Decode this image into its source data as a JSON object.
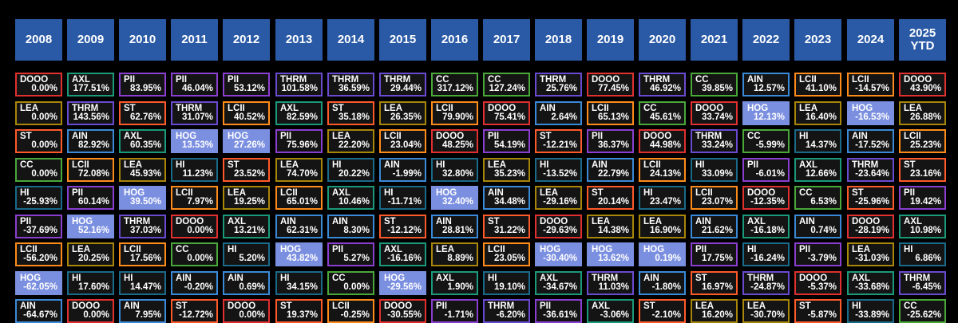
{
  "chart_data": {
    "type": "table",
    "title": "",
    "years": [
      "2008",
      "2009",
      "2010",
      "2011",
      "2012",
      "2013",
      "2014",
      "2015",
      "2016",
      "2017",
      "2018",
      "2019",
      "2020",
      "2021",
      "2022",
      "2023",
      "2024",
      "2025\nYTD"
    ],
    "ticker_colors": {
      "DOOO": "#e03030",
      "AXL": "#1a9a7a",
      "PII": "#8a3fd0",
      "THRM": "#6a4ad0",
      "CC": "#4aa83a",
      "AIN": "#3a8ad8",
      "LCII": "#ff8c1a",
      "LEA": "#a8860a",
      "ST": "#ff5a2a",
      "HI": "#1a6a8a",
      "HOG": "#7b8fe0"
    },
    "columns": [
      [
        [
          "DOOO",
          "0.00%"
        ],
        [
          "LEA",
          "0.00%"
        ],
        [
          "ST",
          "0.00%"
        ],
        [
          "CC",
          "0.00%"
        ],
        [
          "HI",
          "-25.93%"
        ],
        [
          "PII",
          "-37.69%"
        ],
        [
          "LCII",
          "-56.20%"
        ],
        [
          "HOG",
          "-62.05%"
        ],
        [
          "AIN",
          "-64.67%"
        ]
      ],
      [
        [
          "AXL",
          "177.51%"
        ],
        [
          "THRM",
          "143.56%"
        ],
        [
          "AIN",
          "82.92%"
        ],
        [
          "LCII",
          "72.08%"
        ],
        [
          "PII",
          "60.14%"
        ],
        [
          "HOG",
          "52.16%"
        ],
        [
          "LEA",
          "20.25%"
        ],
        [
          "HI",
          "17.60%"
        ],
        [
          "DOOO",
          "0.00%"
        ]
      ],
      [
        [
          "PII",
          "83.95%"
        ],
        [
          "ST",
          "62.76%"
        ],
        [
          "AXL",
          "60.35%"
        ],
        [
          "LEA",
          "45.93%"
        ],
        [
          "HOG",
          "39.50%"
        ],
        [
          "THRM",
          "37.03%"
        ],
        [
          "LCII",
          "17.56%"
        ],
        [
          "HI",
          "14.47%"
        ],
        [
          "AIN",
          "7.95%"
        ]
      ],
      [
        [
          "PII",
          "46.04%"
        ],
        [
          "THRM",
          "31.07%"
        ],
        [
          "HOG",
          "13.53%"
        ],
        [
          "HI",
          "11.23%"
        ],
        [
          "LCII",
          "7.97%"
        ],
        [
          "DOOO",
          "0.00%"
        ],
        [
          "CC",
          "0.00%"
        ],
        [
          "AIN",
          "-0.20%"
        ],
        [
          "ST",
          "-12.72%"
        ]
      ],
      [
        [
          "PII",
          "53.12%"
        ],
        [
          "LCII",
          "40.52%"
        ],
        [
          "HOG",
          "27.26%"
        ],
        [
          "ST",
          "23.52%"
        ],
        [
          "LEA",
          "19.25%"
        ],
        [
          "AXL",
          "13.21%"
        ],
        [
          "HI",
          "5.20%"
        ],
        [
          "AIN",
          "0.69%"
        ],
        [
          "DOOO",
          "0.00%"
        ]
      ],
      [
        [
          "THRM",
          "101.58%"
        ],
        [
          "AXL",
          "82.59%"
        ],
        [
          "PII",
          "75.96%"
        ],
        [
          "LEA",
          "74.70%"
        ],
        [
          "LCII",
          "65.01%"
        ],
        [
          "AIN",
          "62.31%"
        ],
        [
          "HOG",
          "43.82%"
        ],
        [
          "HI",
          "34.15%"
        ],
        [
          "ST",
          "19.37%"
        ]
      ],
      [
        [
          "THRM",
          "36.59%"
        ],
        [
          "ST",
          "35.18%"
        ],
        [
          "LEA",
          "22.20%"
        ],
        [
          "HI",
          "20.22%"
        ],
        [
          "AXL",
          "10.46%"
        ],
        [
          "AIN",
          "8.30%"
        ],
        [
          "PII",
          "5.27%"
        ],
        [
          "CC",
          "0.00%"
        ],
        [
          "LCII",
          "-0.25%"
        ]
      ],
      [
        [
          "THRM",
          "29.44%"
        ],
        [
          "LEA",
          "26.35%"
        ],
        [
          "LCII",
          "23.04%"
        ],
        [
          "AIN",
          "-1.99%"
        ],
        [
          "HI",
          "-11.71%"
        ],
        [
          "ST",
          "-12.12%"
        ],
        [
          "AXL",
          "-16.16%"
        ],
        [
          "HOG",
          "-29.56%"
        ],
        [
          "DOOO",
          "-30.55%"
        ]
      ],
      [
        [
          "CC",
          "317.12%"
        ],
        [
          "LCII",
          "79.90%"
        ],
        [
          "DOOO",
          "48.25%"
        ],
        [
          "HI",
          "32.80%"
        ],
        [
          "HOG",
          "32.40%"
        ],
        [
          "AIN",
          "28.81%"
        ],
        [
          "LEA",
          "8.89%"
        ],
        [
          "AXL",
          "1.90%"
        ],
        [
          "PII",
          "-1.71%"
        ]
      ],
      [
        [
          "CC",
          "127.24%"
        ],
        [
          "DOOO",
          "75.41%"
        ],
        [
          "PII",
          "54.19%"
        ],
        [
          "LEA",
          "35.23%"
        ],
        [
          "AIN",
          "34.48%"
        ],
        [
          "ST",
          "31.22%"
        ],
        [
          "LCII",
          "23.05%"
        ],
        [
          "HI",
          "19.10%"
        ],
        [
          "THRM",
          "-6.20%"
        ]
      ],
      [
        [
          "THRM",
          "25.76%"
        ],
        [
          "AIN",
          "2.64%"
        ],
        [
          "ST",
          "-12.21%"
        ],
        [
          "HI",
          "-13.52%"
        ],
        [
          "LEA",
          "-29.16%"
        ],
        [
          "DOOO",
          "-29.63%"
        ],
        [
          "HOG",
          "-30.40%"
        ],
        [
          "AXL",
          "-34.67%"
        ],
        [
          "PII",
          "-36.61%"
        ]
      ],
      [
        [
          "DOOO",
          "77.45%"
        ],
        [
          "LCII",
          "65.13%"
        ],
        [
          "PII",
          "36.37%"
        ],
        [
          "AIN",
          "22.79%"
        ],
        [
          "ST",
          "20.14%"
        ],
        [
          "LEA",
          "14.38%"
        ],
        [
          "HOG",
          "13.62%"
        ],
        [
          "THRM",
          "11.03%"
        ],
        [
          "AXL",
          "-3.06%"
        ]
      ],
      [
        [
          "THRM",
          "46.92%"
        ],
        [
          "CC",
          "45.61%"
        ],
        [
          "DOOO",
          "44.98%"
        ],
        [
          "LCII",
          "24.13%"
        ],
        [
          "HI",
          "23.47%"
        ],
        [
          "LEA",
          "16.90%"
        ],
        [
          "HOG",
          "0.19%"
        ],
        [
          "AIN",
          "-1.80%"
        ],
        [
          "ST",
          "-2.10%"
        ]
      ],
      [
        [
          "CC",
          "39.85%"
        ],
        [
          "DOOO",
          "33.74%"
        ],
        [
          "THRM",
          "33.24%"
        ],
        [
          "HI",
          "33.09%"
        ],
        [
          "LCII",
          "23.07%"
        ],
        [
          "AIN",
          "21.62%"
        ],
        [
          "PII",
          "17.75%"
        ],
        [
          "ST",
          "16.97%"
        ],
        [
          "LEA",
          "16.20%"
        ]
      ],
      [
        [
          "AIN",
          "12.57%"
        ],
        [
          "HOG",
          "12.13%"
        ],
        [
          "CC",
          "-5.99%"
        ],
        [
          "PII",
          "-6.01%"
        ],
        [
          "DOOO",
          "-12.35%"
        ],
        [
          "AXL",
          "-16.18%"
        ],
        [
          "HI",
          "-16.24%"
        ],
        [
          "THRM",
          "-24.87%"
        ],
        [
          "LEA",
          "-30.70%"
        ]
      ],
      [
        [
          "LCII",
          "41.10%"
        ],
        [
          "LEA",
          "16.40%"
        ],
        [
          "HI",
          "14.37%"
        ],
        [
          "AXL",
          "12.66%"
        ],
        [
          "CC",
          "6.53%"
        ],
        [
          "AIN",
          "0.74%"
        ],
        [
          "PII",
          "-3.79%"
        ],
        [
          "DOOO",
          "-5.37%"
        ],
        [
          "ST",
          "-5.87%"
        ]
      ],
      [
        [
          "LCII",
          "-14.57%"
        ],
        [
          "HOG",
          "-16.53%"
        ],
        [
          "AIN",
          "-17.52%"
        ],
        [
          "THRM",
          "-23.64%"
        ],
        [
          "ST",
          "-25.96%"
        ],
        [
          "DOOO",
          "-28.19%"
        ],
        [
          "LEA",
          "-31.03%"
        ],
        [
          "AXL",
          "-33.68%"
        ],
        [
          "HI",
          "-33.89%"
        ]
      ],
      [
        [
          "DOOO",
          "43.90%"
        ],
        [
          "LEA",
          "26.88%"
        ],
        [
          "LCII",
          "25.23%"
        ],
        [
          "ST",
          "23.16%"
        ],
        [
          "PII",
          "19.42%"
        ],
        [
          "AXL",
          "10.98%"
        ],
        [
          "HI",
          "6.86%"
        ],
        [
          "THRM",
          "-6.45%"
        ],
        [
          "CC",
          "-25.62%"
        ]
      ]
    ]
  }
}
